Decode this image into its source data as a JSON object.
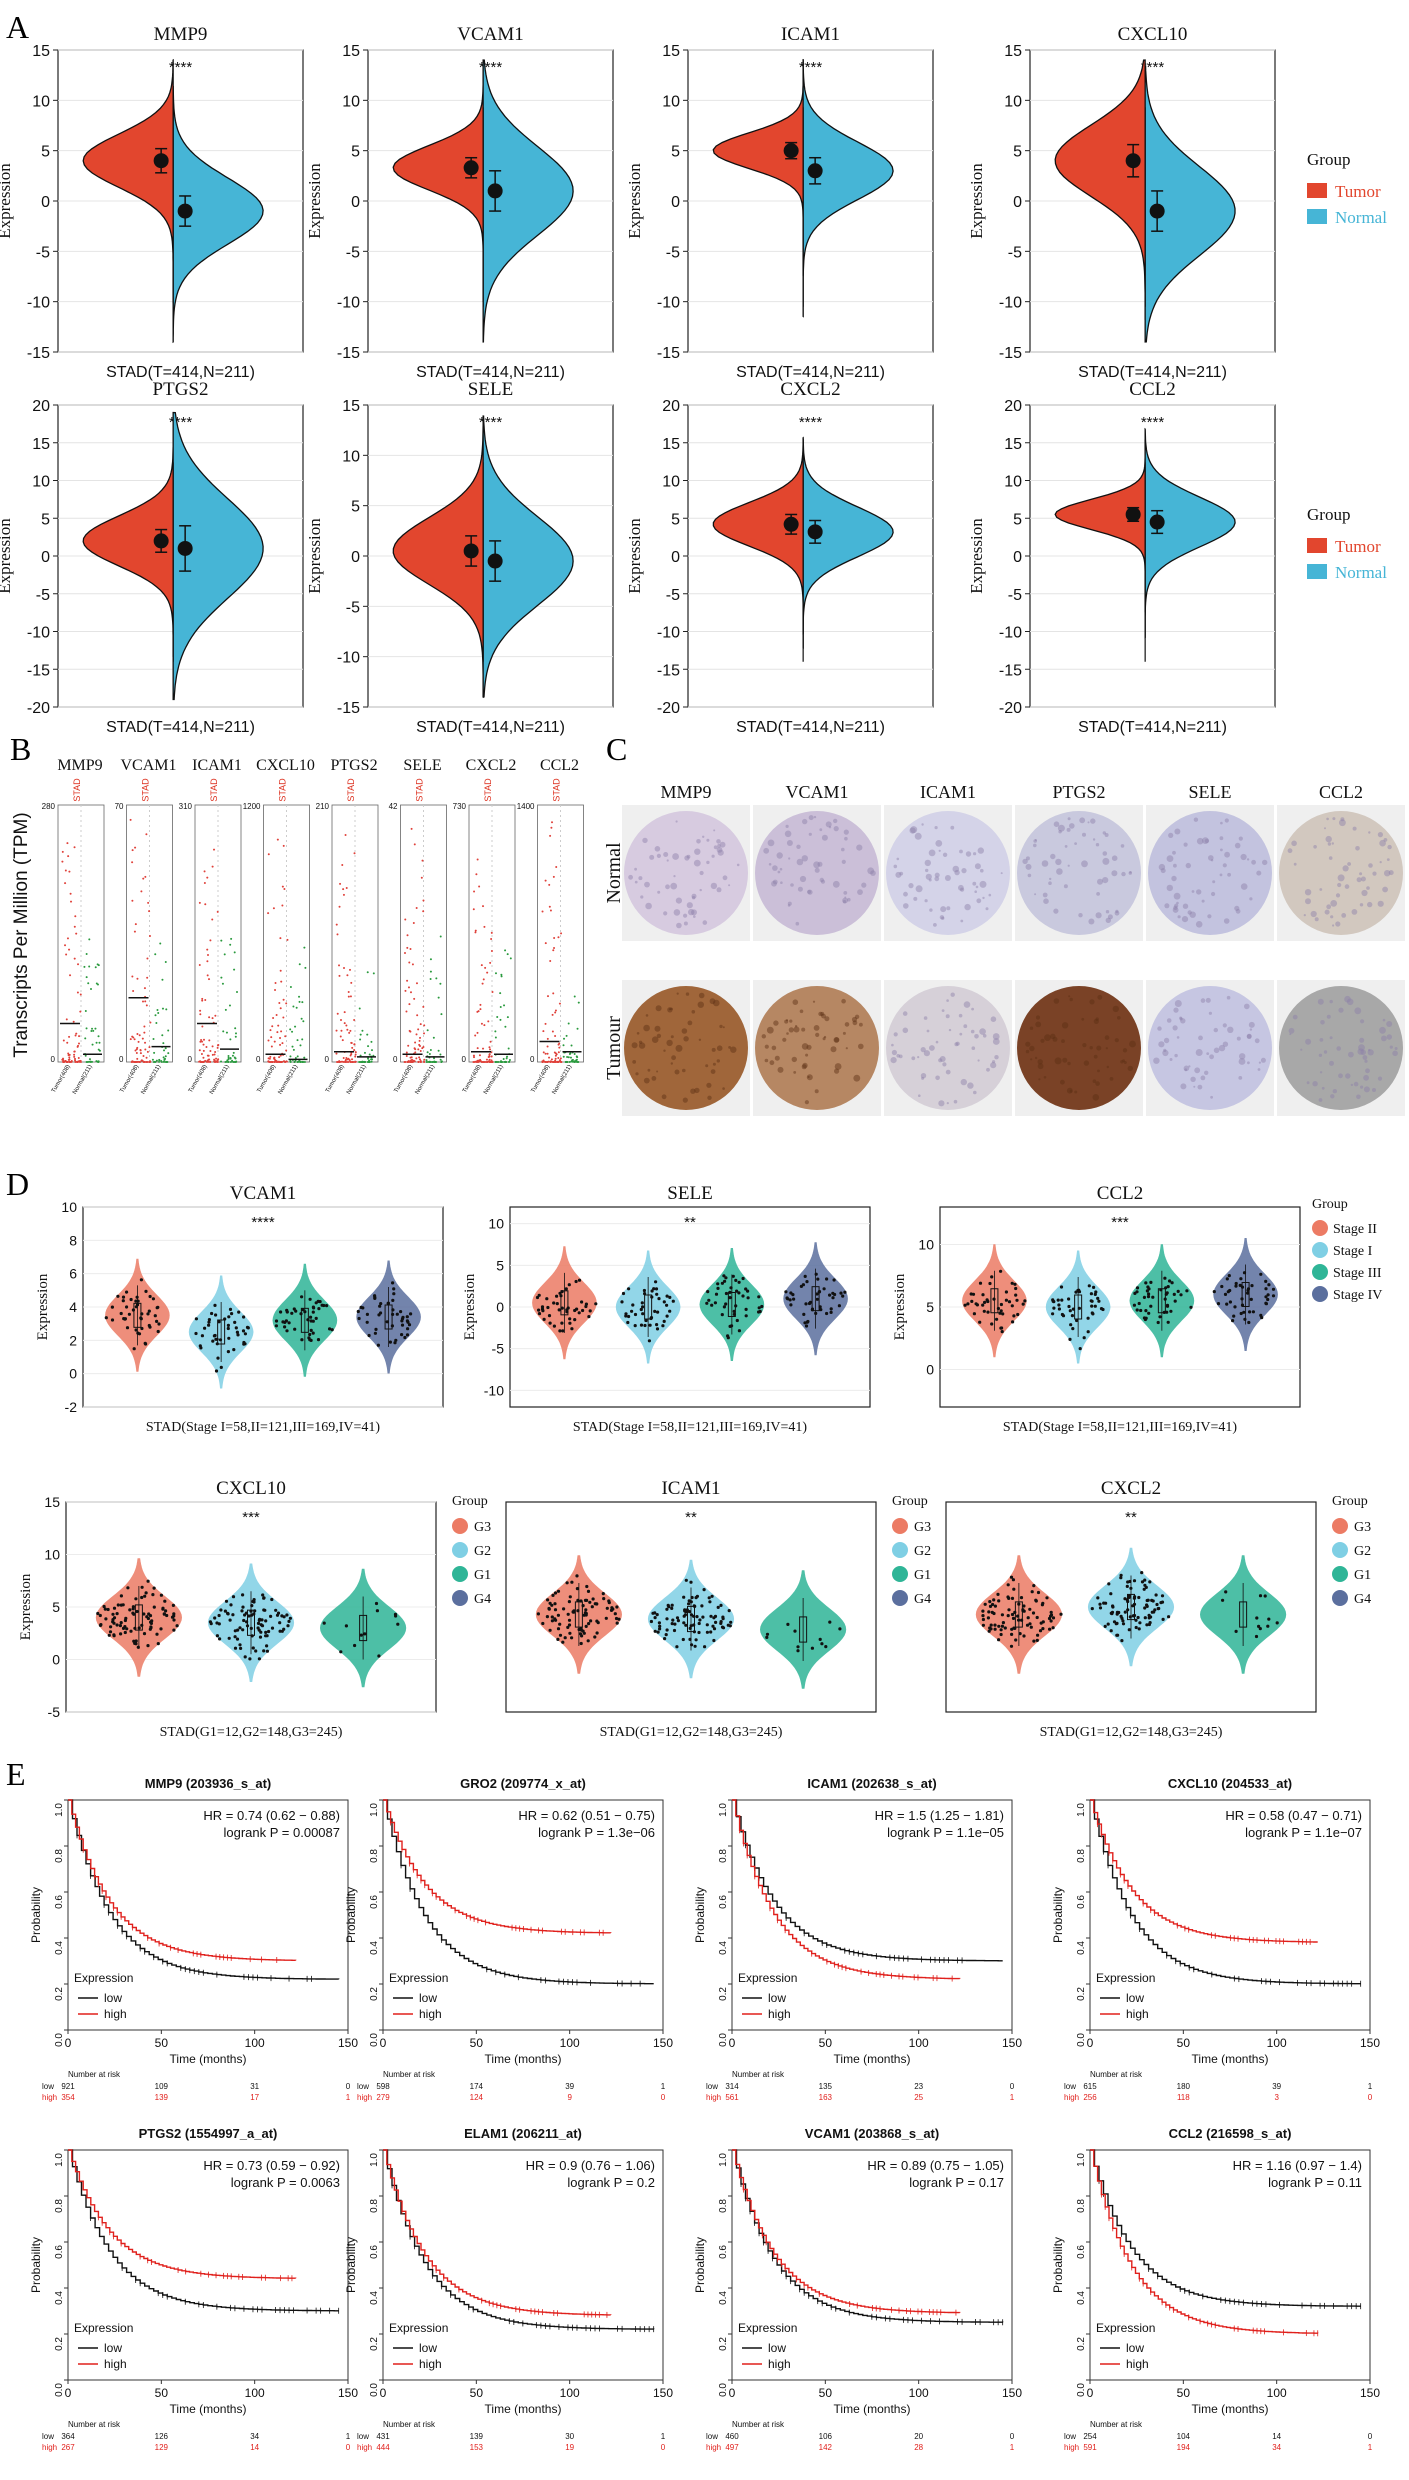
{
  "panel_labels": {
    "a": "A",
    "b": "B",
    "c": "C",
    "d": "D",
    "e": "E"
  },
  "common": {
    "expression": "Expression",
    "group": "Group",
    "tumor": "Tumor",
    "normal": "Normal",
    "stad_tn": "STAD(T=414,N=211)",
    "stad_stage": "STAD(Stage I=58,II=121,III=169,IV=41)",
    "stad_grade": "STAD(G1=12,G2=148,G3=245)",
    "tpm_label": "Transcripts Per Million (TPM)",
    "stad_small": "STAD",
    "tumor_small": "Tumor(408)",
    "normal_small": "Normal(211)",
    "ihc_normal": "Normal",
    "ihc_tumour": "Tumour",
    "probability": "Probability",
    "time_months": "Time (months)",
    "expression_legend": "Expression",
    "low": "low",
    "high": "high",
    "number_at_risk": "Number at risk"
  },
  "colors": {
    "tumor": "#e2462e",
    "normal": "#46b5d6",
    "stageII": "#ec7b64",
    "stageI": "#7fcfe4",
    "stageIII": "#2fb597",
    "stageIV": "#5b6f9e",
    "km_low": "#111111",
    "km_high": "#e0201c"
  },
  "chart_data": {
    "panelA": [
      {
        "gene": "MMP9",
        "signif": "****",
        "ylim": [
          -15,
          15
        ],
        "ticks": [
          -15,
          -10,
          -5,
          0,
          5,
          10,
          15
        ],
        "tumor_mean": 4,
        "tumor_sd": 1.2,
        "normal_mean": -1,
        "normal_sd": 1.5
      },
      {
        "gene": "VCAM1",
        "signif": "****",
        "ylim": [
          -15,
          15
        ],
        "ticks": [
          -15,
          -10,
          -5,
          0,
          5,
          10,
          15
        ],
        "tumor_mean": 3.3,
        "tumor_sd": 1,
        "normal_mean": 1,
        "normal_sd": 2
      },
      {
        "gene": "ICAM1",
        "signif": "****",
        "ylim": [
          -15,
          15
        ],
        "ticks": [
          -15,
          -10,
          -5,
          0,
          5,
          10,
          15
        ],
        "tumor_mean": 5,
        "tumor_sd": 0.8,
        "normal_mean": 3,
        "normal_sd": 1.3
      },
      {
        "gene": "CXCL10",
        "signif": "****",
        "ylim": [
          -15,
          15
        ],
        "ticks": [
          -15,
          -10,
          -5,
          0,
          5,
          10,
          15
        ],
        "tumor_mean": 4,
        "tumor_sd": 1.6,
        "normal_mean": -1,
        "normal_sd": 2
      },
      {
        "gene": "PTGS2",
        "signif": "****",
        "ylim": [
          -20,
          20
        ],
        "ticks": [
          -20,
          -15,
          -10,
          -5,
          0,
          5,
          10,
          15,
          20
        ],
        "tumor_mean": 2,
        "tumor_sd": 1.5,
        "normal_mean": 1,
        "normal_sd": 3
      },
      {
        "gene": "SELE",
        "signif": "****",
        "ylim": [
          -15,
          15
        ],
        "ticks": [
          -15,
          -10,
          -5,
          0,
          5,
          10,
          15
        ],
        "tumor_mean": 0.5,
        "tumor_sd": 1.5,
        "normal_mean": -0.5,
        "normal_sd": 2
      },
      {
        "gene": "CXCL2",
        "signif": "****",
        "ylim": [
          -20,
          20
        ],
        "ticks": [
          -20,
          -15,
          -10,
          -5,
          0,
          5,
          10,
          15,
          20
        ],
        "tumor_mean": 4.2,
        "tumor_sd": 1.3,
        "normal_mean": 3.2,
        "normal_sd": 1.5
      },
      {
        "gene": "CCL2",
        "signif": "****",
        "ylim": [
          -20,
          20
        ],
        "ticks": [
          -20,
          -15,
          -10,
          -5,
          0,
          5,
          10,
          15,
          20
        ],
        "tumor_mean": 5.5,
        "tumor_sd": 0.9,
        "normal_mean": 4.5,
        "normal_sd": 1.5
      }
    ],
    "panelB": [
      {
        "gene": "MMP9",
        "ymax": "280",
        "tumor_median": 0.15,
        "normal_median": 0.03
      },
      {
        "gene": "VCAM1",
        "ymax": "70",
        "tumor_median": 0.25,
        "normal_median": 0.06
      },
      {
        "gene": "ICAM1",
        "ymax": "310",
        "tumor_median": 0.15,
        "normal_median": 0.05
      },
      {
        "gene": "CXCL10",
        "ymax": "1200",
        "tumor_median": 0.03,
        "normal_median": 0.01
      },
      {
        "gene": "PTGS2",
        "ymax": "210",
        "tumor_median": 0.04,
        "normal_median": 0.02
      },
      {
        "gene": "SELE",
        "ymax": "42",
        "tumor_median": 0.03,
        "normal_median": 0.02
      },
      {
        "gene": "CXCL2",
        "ymax": "730",
        "tumor_median": 0.04,
        "normal_median": 0.03
      },
      {
        "gene": "CCL2",
        "ymax": "1400",
        "tumor_median": 0.08,
        "normal_median": 0.04
      }
    ],
    "panelC": {
      "genes": [
        "MMP9",
        "VCAM1",
        "ICAM1",
        "PTGS2",
        "SELE",
        "CCL2"
      ],
      "rows": [
        "Normal",
        "Tumour"
      ]
    },
    "panelD_stage": [
      {
        "gene": "VCAM1",
        "signif": "****",
        "ylim": [
          -2,
          10
        ],
        "ticks": [
          -2,
          0,
          2,
          4,
          6,
          8,
          10
        ],
        "medians": [
          3.5,
          2.5,
          3.2,
          3.4
        ]
      },
      {
        "gene": "SELE",
        "signif": "**",
        "ylim": [
          -12,
          12
        ],
        "ticks": [
          -10,
          -5,
          0,
          5,
          10
        ],
        "medians": [
          0.5,
          0,
          0.3,
          1
        ]
      },
      {
        "gene": "CCL2",
        "signif": "***",
        "ylim": [
          -3,
          13
        ],
        "ticks": [
          0,
          5,
          10
        ],
        "medians": [
          5.5,
          5,
          5.5,
          6
        ]
      }
    ],
    "panelD_stage_legend": [
      "Stage II",
      "Stage I",
      "Stage III",
      "Stage IV"
    ],
    "panelD_grade": [
      {
        "gene": "CXCL10",
        "signif": "***",
        "ylim": [
          -5,
          15
        ],
        "ticks": [
          -5,
          0,
          5,
          10,
          15
        ],
        "medians": [
          4,
          3.5,
          3
        ]
      },
      {
        "gene": "ICAM1",
        "signif": "**",
        "ylim": [
          -2,
          12
        ],
        "ticks": [],
        "medians": [
          4.5,
          4.2,
          3.5
        ]
      },
      {
        "gene": "CXCL2",
        "signif": "**",
        "ylim": [
          -2,
          12
        ],
        "ticks": [],
        "medians": [
          4.5,
          5,
          4.5
        ]
      }
    ],
    "panelD_grade_legend": [
      "G3",
      "G2",
      "G1",
      "G4"
    ],
    "panelE": [
      {
        "title": "MMP9 (203936_s_at)",
        "hr": "HR = 0.74 (0.62 − 0.88)",
        "p": "logrank P = 0.00087",
        "low_end": 0.22,
        "high_end": 0.3,
        "xmax": 150,
        "risk_low": [
          "921",
          "109",
          "31",
          "0"
        ],
        "risk_high": [
          "354",
          "139",
          "17",
          "1"
        ]
      },
      {
        "title": "GRO2 (209774_x_at)",
        "hr": "HR = 0.62 (0.51 − 0.75)",
        "p": "logrank P = 1.3e−06",
        "low_end": 0.2,
        "high_end": 0.42,
        "xmax": 150,
        "risk_low": [
          "598",
          "174",
          "39",
          "1"
        ],
        "risk_high": [
          "279",
          "124",
          "9",
          "0"
        ]
      },
      {
        "title": "ICAM1 (202638_s_at)",
        "hr": "HR = 1.5 (1.25 − 1.81)",
        "p": "logrank P = 1.1e−05",
        "low_end": 0.3,
        "high_end": 0.22,
        "xmax": 150,
        "risk_low": [
          "314",
          "135",
          "23",
          "0"
        ],
        "risk_high": [
          "561",
          "163",
          "25",
          "1"
        ]
      },
      {
        "title": "CXCL10 (204533_at)",
        "hr": "HR = 0.58 (0.47 − 0.71)",
        "p": "logrank P = 1.1e−07",
        "low_end": 0.2,
        "high_end": 0.38,
        "xmax": 150,
        "risk_low": [
          "615",
          "180",
          "39",
          "1"
        ],
        "risk_high": [
          "256",
          "118",
          "3",
          "0"
        ]
      },
      {
        "title": "PTGS2 (1554997_a_at)",
        "hr": "HR = 0.73 (0.59 − 0.92)",
        "p": "logrank P = 0.0063",
        "low_end": 0.3,
        "high_end": 0.44,
        "xmax": 150,
        "risk_low": [
          "364",
          "126",
          "34",
          "1"
        ],
        "risk_high": [
          "267",
          "129",
          "14",
          "0"
        ]
      },
      {
        "title": "ELAM1 (206211_at)",
        "hr": "HR = 0.9 (0.76 − 1.06)",
        "p": "logrank P = 0.2",
        "low_end": 0.22,
        "high_end": 0.28,
        "xmax": 150,
        "risk_low": [
          "431",
          "139",
          "30",
          "1"
        ],
        "risk_high": [
          "444",
          "153",
          "19",
          "0"
        ]
      },
      {
        "title": "VCAM1 (203868_s_at)",
        "hr": "HR = 0.89 (0.75 − 1.05)",
        "p": "logrank P = 0.17",
        "low_end": 0.25,
        "high_end": 0.29,
        "xmax": 150,
        "risk_low": [
          "460",
          "106",
          "20",
          "0"
        ],
        "risk_high": [
          "497",
          "142",
          "28",
          "1"
        ]
      },
      {
        "title": "CCL2 (216598_s_at)",
        "hr": "HR = 1.16 (0.97 − 1.4)",
        "p": "logrank P = 0.11",
        "low_end": 0.32,
        "high_end": 0.2,
        "xmax": 150,
        "risk_low": [
          "254",
          "104",
          "14",
          "0"
        ],
        "risk_high": [
          "591",
          "194",
          "34",
          "1"
        ]
      }
    ]
  }
}
